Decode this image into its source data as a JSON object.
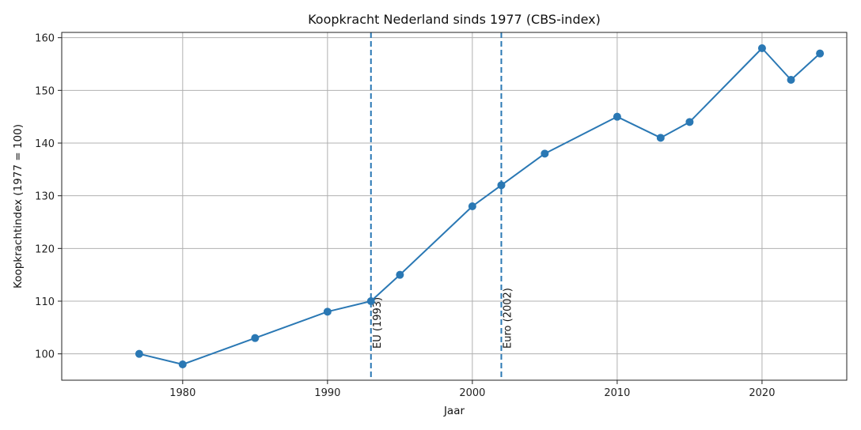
{
  "chart_data": {
    "type": "line",
    "title": "Koopkracht Nederland sinds 1977 (CBS-index)",
    "xlabel": "Jaar",
    "ylabel": "Koopkrachtindex (1977 = 100)",
    "xlim": [
      1971.65,
      2025.85
    ],
    "ylim": [
      95,
      161
    ],
    "xticks": [
      1980,
      1990,
      2000,
      2010,
      2020
    ],
    "yticks": [
      100,
      110,
      120,
      130,
      140,
      150,
      160
    ],
    "grid": true,
    "series": [
      {
        "x": [
          1977,
          1980,
          1985,
          1990,
          1993,
          1995,
          2000,
          2002,
          2005,
          2010,
          2013,
          2015,
          2020,
          2022,
          2024
        ],
        "y": [
          100,
          98,
          103,
          108,
          110,
          115,
          128,
          132,
          138,
          145,
          141,
          144,
          158,
          152,
          157
        ],
        "color": "#2a78b4"
      }
    ],
    "vlines": [
      {
        "x": 1993,
        "label": "EU (1993)",
        "color": "#2a78b4"
      },
      {
        "x": 2002,
        "label": "Euro (2002)",
        "color": "#2a78b4"
      }
    ]
  }
}
